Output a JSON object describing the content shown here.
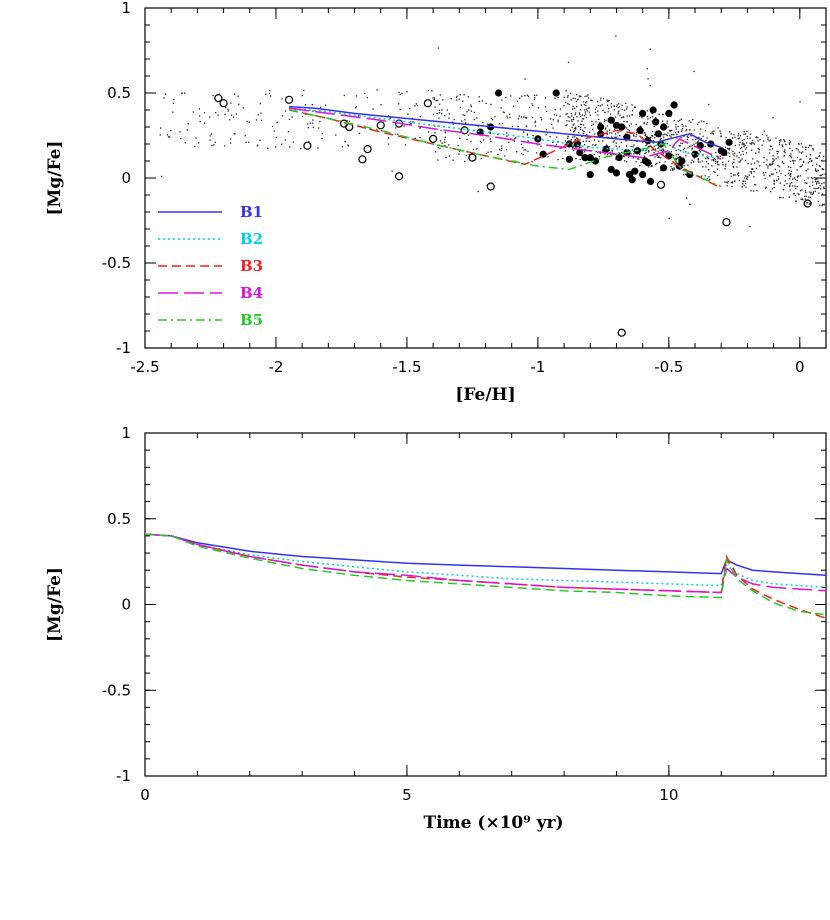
{
  "figure": {
    "panels": 2
  },
  "chart_data": [
    {
      "type": "scatter",
      "panel": "top",
      "title": "",
      "xlabel": "[Fe/H]",
      "ylabel": "[Mg/Fe]",
      "xlim": [
        -2.5,
        0.1
      ],
      "ylim": [
        -1,
        1
      ],
      "xticks": [
        -2.5,
        -2,
        -1.5,
        -1,
        -0.5,
        0
      ],
      "yticks": [
        -1,
        -0.5,
        0,
        0.5,
        1
      ],
      "xtick_labels": [
        "-2.5",
        "-2",
        "-1.5",
        "-1",
        "-0.5",
        "0"
      ],
      "ytick_labels": [
        "-1",
        "-0.5",
        "0",
        "0.5",
        "1"
      ],
      "legend_position": "lower-left",
      "series": [
        {
          "name": "B1",
          "color": "#3333ee",
          "dash": "solid",
          "x": [
            -1.95,
            -1.85,
            -1.7,
            -1.5,
            -1.3,
            -1.1,
            -0.9,
            -0.7,
            -0.55,
            -0.42,
            -0.36,
            -0.3
          ],
          "y": [
            0.42,
            0.41,
            0.38,
            0.35,
            0.32,
            0.29,
            0.26,
            0.23,
            0.21,
            0.26,
            0.21,
            0.18
          ]
        },
        {
          "name": "B2",
          "color": "#00d0e0",
          "dash": "dotted",
          "x": [
            -1.95,
            -1.8,
            -1.6,
            -1.4,
            -1.2,
            -1.0,
            -0.8,
            -0.6,
            -0.52,
            -0.44,
            -0.36,
            -0.3
          ],
          "y": [
            0.41,
            0.39,
            0.35,
            0.31,
            0.27,
            0.23,
            0.18,
            0.16,
            0.21,
            0.15,
            0.13,
            0.11
          ]
        },
        {
          "name": "B3",
          "color": "#ee2222",
          "dash": "dashed",
          "x": [
            -1.95,
            -1.8,
            -1.6,
            -1.4,
            -1.2,
            -1.05,
            -0.85,
            -0.7,
            -0.62,
            -0.55,
            -0.45,
            -0.3
          ],
          "y": [
            0.4,
            0.35,
            0.27,
            0.2,
            0.13,
            0.08,
            0.22,
            0.28,
            0.26,
            0.16,
            0.06,
            -0.06
          ]
        },
        {
          "name": "B4",
          "color": "#dd11dd",
          "dash": "longdash",
          "x": [
            -1.95,
            -1.8,
            -1.6,
            -1.4,
            -1.2,
            -1.0,
            -0.8,
            -0.6,
            -0.5,
            -0.46,
            -0.3
          ],
          "y": [
            0.41,
            0.38,
            0.34,
            0.29,
            0.25,
            0.2,
            0.16,
            0.12,
            0.16,
            0.23,
            0.11
          ]
        },
        {
          "name": "B5",
          "color": "#22cc22",
          "dash": "dashdot",
          "x": [
            -1.95,
            -1.8,
            -1.6,
            -1.4,
            -1.2,
            -1.0,
            -0.88,
            -0.75,
            -0.6,
            -0.52,
            -0.45,
            -0.3
          ],
          "y": [
            0.4,
            0.35,
            0.28,
            0.2,
            0.13,
            0.07,
            0.05,
            0.12,
            0.17,
            0.2,
            0.05,
            -0.05
          ]
        }
      ],
      "open_circles": {
        "x": [
          -2.22,
          -2.2,
          -1.95,
          -1.88,
          -1.74,
          -1.72,
          -1.65,
          -1.67,
          -1.6,
          -1.53,
          -1.53,
          -1.42,
          -1.4,
          -1.28,
          -1.25,
          -1.18,
          -0.68,
          -0.53,
          -0.46,
          -0.28,
          0.03
        ],
        "y": [
          0.47,
          0.44,
          0.46,
          0.19,
          0.32,
          0.3,
          0.17,
          0.11,
          0.31,
          0.32,
          0.01,
          0.44,
          0.23,
          0.28,
          0.12,
          -0.05,
          -0.91,
          -0.04,
          0.1,
          -0.26,
          -0.15
        ]
      },
      "filled_dots": {
        "x": [
          -1.22,
          -1.18,
          -1.15,
          -1.0,
          -0.98,
          -0.93,
          -0.88,
          -0.85,
          -0.82,
          -0.8,
          -0.78,
          -0.76,
          -0.74,
          -0.72,
          -0.7,
          -0.7,
          -0.68,
          -0.66,
          -0.65,
          -0.64,
          -0.62,
          -0.6,
          -0.6,
          -0.58,
          -0.58,
          -0.57,
          -0.56,
          -0.55,
          -0.54,
          -0.53,
          -0.52,
          -0.52,
          -0.5,
          -0.5,
          -0.48,
          -0.46,
          -0.45,
          -0.42,
          -0.4,
          -0.38,
          -0.34,
          -0.3,
          -0.29,
          -0.27,
          -0.88,
          -0.84,
          -0.8,
          -0.76,
          -0.72,
          -0.69,
          -0.66,
          -0.63,
          -0.61,
          -0.59
        ],
        "y": [
          0.27,
          0.3,
          0.5,
          0.23,
          0.14,
          0.5,
          0.11,
          0.2,
          0.12,
          0.02,
          0.1,
          0.3,
          0.17,
          0.34,
          0.31,
          0.03,
          0.3,
          0.15,
          0.02,
          -0.01,
          0.16,
          0.38,
          0.02,
          0.22,
          0.09,
          -0.02,
          0.4,
          0.33,
          0.26,
          0.2,
          0.3,
          0.06,
          0.38,
          0.13,
          0.43,
          0.07,
          0.1,
          0.02,
          0.14,
          0.19,
          0.2,
          0.16,
          0.15,
          0.21,
          0.2,
          0.15,
          0.12,
          0.26,
          0.05,
          0.12,
          0.24,
          0.04,
          0.28,
          0.1
        ]
      },
      "small_dots_note": "thousands of faint halo/disk star points, denser from [Fe/H] -1 to 0"
    },
    {
      "type": "line",
      "panel": "bottom",
      "title": "",
      "xlabel": "Time (×10⁹ yr)",
      "ylabel": "[Mg/Fe]",
      "xlim": [
        0,
        13
      ],
      "ylim": [
        -1,
        1
      ],
      "xticks": [
        0,
        5,
        10
      ],
      "yticks": [
        -1,
        -0.5,
        0,
        0.5,
        1
      ],
      "xtick_labels": [
        "0",
        "5",
        "10"
      ],
      "ytick_labels": [
        "-1",
        "-0.5",
        "0",
        "0.5",
        "1"
      ],
      "series": [
        {
          "name": "B1",
          "color": "#3333ee",
          "dash": "solid",
          "x": [
            0,
            0.5,
            1,
            2,
            3,
            4,
            5,
            6,
            7,
            8,
            9,
            10,
            11,
            11.1,
            11.3,
            11.6,
            12,
            12.5,
            13
          ],
          "y": [
            0.41,
            0.4,
            0.36,
            0.31,
            0.28,
            0.26,
            0.24,
            0.23,
            0.22,
            0.21,
            0.2,
            0.19,
            0.18,
            0.26,
            0.23,
            0.2,
            0.19,
            0.18,
            0.17
          ]
        },
        {
          "name": "B2",
          "color": "#00d0e0",
          "dash": "dotted",
          "x": [
            0,
            0.5,
            1,
            2,
            3,
            4,
            5,
            6,
            7,
            8,
            9,
            10,
            11,
            11.1,
            11.3,
            11.6,
            12,
            12.5,
            13
          ],
          "y": [
            0.41,
            0.4,
            0.35,
            0.29,
            0.25,
            0.22,
            0.19,
            0.17,
            0.15,
            0.14,
            0.13,
            0.12,
            0.11,
            0.23,
            0.18,
            0.14,
            0.12,
            0.11,
            0.1
          ]
        },
        {
          "name": "B3",
          "color": "#ee2222",
          "dash": "dashed",
          "x": [
            0,
            0.5,
            1,
            2,
            3,
            4,
            5,
            6,
            7,
            8,
            9,
            10,
            11,
            11.1,
            11.3,
            11.6,
            12,
            12.5,
            13
          ],
          "y": [
            0.41,
            0.4,
            0.35,
            0.28,
            0.23,
            0.19,
            0.16,
            0.14,
            0.12,
            0.1,
            0.09,
            0.08,
            0.07,
            0.28,
            0.17,
            0.09,
            0.03,
            -0.03,
            -0.08
          ]
        },
        {
          "name": "B4",
          "color": "#dd11dd",
          "dash": "longdash",
          "x": [
            0,
            0.5,
            1,
            2,
            3,
            4,
            5,
            6,
            7,
            8,
            9,
            10,
            11,
            11.1,
            11.3,
            11.6,
            12,
            12.5,
            13
          ],
          "y": [
            0.41,
            0.4,
            0.35,
            0.28,
            0.23,
            0.19,
            0.17,
            0.14,
            0.12,
            0.1,
            0.09,
            0.08,
            0.07,
            0.21,
            0.16,
            0.12,
            0.1,
            0.09,
            0.08
          ]
        },
        {
          "name": "B5",
          "color": "#22cc22",
          "dash": "dashed",
          "x": [
            0,
            0.5,
            1,
            2,
            3,
            4,
            5,
            6,
            7,
            8,
            9,
            10,
            11,
            11.1,
            11.3,
            11.6,
            12,
            12.5,
            13
          ],
          "y": [
            0.41,
            0.4,
            0.34,
            0.27,
            0.21,
            0.17,
            0.14,
            0.12,
            0.1,
            0.08,
            0.07,
            0.05,
            0.04,
            0.26,
            0.15,
            0.08,
            0.01,
            -0.04,
            -0.06
          ]
        }
      ]
    }
  ]
}
